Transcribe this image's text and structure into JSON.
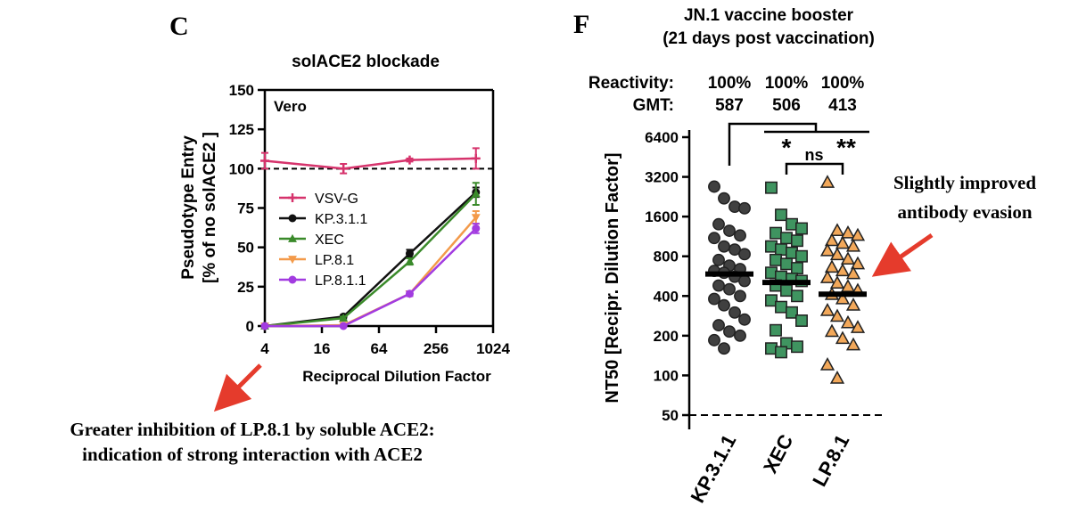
{
  "panel_c": {
    "letter": "C",
    "chart_data": {
      "type": "line",
      "title": "solACE2 blockade",
      "inset_label": "Vero",
      "xlabel": "Reciprocal Dilution Factor",
      "ylabel_line1": "Pseudotype Entry",
      "ylabel_line2": "[% of no solACE2 ]",
      "x_scale": "log2",
      "xlim": [
        4,
        1024
      ],
      "ylim": [
        0,
        150
      ],
      "x_ticks": [
        "4",
        "16",
        "64",
        "256",
        "1024"
      ],
      "y_ticks": [
        "0",
        "25",
        "50",
        "75",
        "100",
        "125",
        "150"
      ],
      "reference_line": 100,
      "legend_position": "center-left",
      "series": [
        {
          "name": "VSV-G",
          "color": "#d6336c",
          "marker": "plus",
          "x": [
            4,
            27,
            135,
            675
          ],
          "y": [
            105,
            100,
            105.5,
            106.5
          ],
          "err": [
            5,
            3,
            1,
            6.5
          ]
        },
        {
          "name": "KP.3.1.1",
          "color": "#111111",
          "marker": "circle",
          "x": [
            4,
            27,
            135,
            675
          ],
          "y": [
            0,
            6,
            46,
            85
          ],
          "err": [
            0.5,
            1,
            2.5,
            3
          ]
        },
        {
          "name": "XEC",
          "color": "#3a8a2a",
          "marker": "triangle-up",
          "x": [
            4,
            27,
            135,
            675
          ],
          "y": [
            0,
            5,
            41,
            84
          ],
          "err": [
            0.5,
            1,
            2,
            7
          ]
        },
        {
          "name": "LP.8.1",
          "color": "#f39a4a",
          "marker": "triangle-down",
          "x": [
            4,
            27,
            135,
            675
          ],
          "y": [
            0,
            0.5,
            20.5,
            69
          ],
          "err": [
            0.5,
            0.5,
            1.5,
            4
          ]
        },
        {
          "name": "LP.8.1.1",
          "color": "#a23be0",
          "marker": "circle",
          "x": [
            4,
            27,
            135,
            675
          ],
          "y": [
            0,
            0,
            20.5,
            62
          ],
          "err": [
            0.5,
            0.5,
            1.5,
            3
          ]
        }
      ]
    },
    "annotation_line1": "Greater inhibition of LP.8.1 by soluble ACE2:",
    "annotation_line2": "indication of strong interaction with ACE2"
  },
  "panel_f": {
    "letter": "F",
    "chart_data": {
      "type": "scatter",
      "title_line1": "JN.1 vaccine booster",
      "title_line2": "(21 days post vaccination)",
      "ylabel": "NT50 [Recipr. Dilution Factor]",
      "y_scale": "log2",
      "ylim": [
        35,
        8000
      ],
      "y_ticks": [
        "50",
        "100",
        "200",
        "400",
        "800",
        "1600",
        "3200",
        "6400"
      ],
      "reference_line": 50,
      "reactivity_label": "Reactivity:",
      "gmt_label": "GMT:",
      "categories": [
        "KP.3.1.1",
        "XEC",
        "LP.8.1"
      ],
      "reactivity": [
        "100%",
        "100%",
        "100%"
      ],
      "gmt": [
        587,
        506,
        413
      ],
      "colors": [
        "#404040",
        "#3f9460",
        "#f2a85a"
      ],
      "markers": [
        "circle",
        "square",
        "triangle-up"
      ],
      "significance": [
        {
          "between": [
            "KP.3.1.1",
            "XEC"
          ],
          "label": "*"
        },
        {
          "between": [
            "KP.3.1.1",
            "LP.8.1"
          ],
          "label": "**"
        },
        {
          "between": [
            "XEC",
            "LP.8.1"
          ],
          "label": "ns"
        }
      ],
      "points": [
        [
          2700,
          2200,
          1900,
          1850,
          1400,
          1250,
          1150,
          1100,
          950,
          900,
          830,
          750,
          680,
          640,
          620,
          600,
          560,
          520,
          480,
          450,
          400,
          380,
          340,
          300,
          265,
          240,
          215,
          200,
          185,
          160
        ],
        [
          2650,
          1650,
          1400,
          1300,
          1200,
          1100,
          1050,
          950,
          900,
          850,
          800,
          750,
          700,
          650,
          600,
          560,
          540,
          520,
          480,
          440,
          400,
          370,
          330,
          300,
          260,
          220,
          175,
          165,
          160,
          150
        ],
        [
          2900,
          1250,
          1200,
          1150,
          1050,
          1000,
          950,
          880,
          820,
          760,
          700,
          660,
          620,
          590,
          550,
          500,
          470,
          440,
          410,
          380,
          340,
          310,
          280,
          250,
          230,
          215,
          190,
          170,
          120,
          95
        ]
      ]
    },
    "annotation_line1": "Slightly improved",
    "annotation_line2": "antibody evasion"
  }
}
